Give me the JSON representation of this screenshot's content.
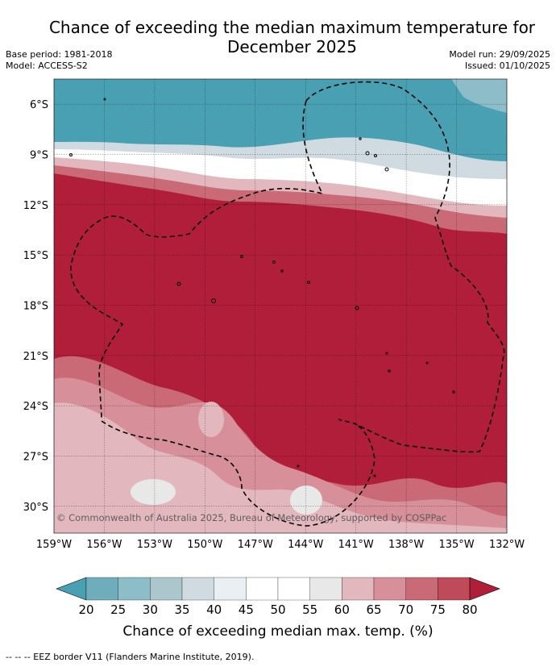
{
  "title": "Chance of exceeding the median maximum temperature for December 2025",
  "title_lines": [
    "Chance of exceeding the median maximum temperature for",
    "December 2025"
  ],
  "base_period": "Base period: 1981-2018",
  "model": "Model: ACCESS-S2",
  "model_run": "Model run: 29/09/2025",
  "issued": "Issued: 01/10/2025",
  "copyright": "© Commonwealth of Australia 2025, Bureau of Meteorology, supported by COSPPac",
  "footer": "--  --  -- EEZ border V11 (Flanders Marine Institute, 2019).",
  "map": {
    "lat_labels": [
      "6°S",
      "9°S",
      "12°S",
      "15°S",
      "18°S",
      "21°S",
      "24°S",
      "27°S",
      "30°S"
    ],
    "lon_labels": [
      "159°W",
      "156°W",
      "153°W",
      "150°W",
      "147°W",
      "144°W",
      "141°W",
      "138°W",
      "135°W",
      "132°W"
    ],
    "lon_range": [
      -159,
      -132
    ],
    "lat_range": [
      -4.5,
      -31.6
    ]
  },
  "colorbar": {
    "label": "Chance of exceeding median max. temp. (%)",
    "ticks": [
      "20",
      "25",
      "30",
      "35",
      "40",
      "45",
      "50",
      "55",
      "60",
      "65",
      "70",
      "75",
      "80"
    ],
    "colors": [
      "#4aa0b3",
      "#6fadbd",
      "#8dbdc8",
      "#abc7cd",
      "#cfdbe0",
      "#e9eff2",
      "#ffffff",
      "#ffffff",
      "#e8e8e8",
      "#e2b7be",
      "#d7909a",
      "#c96a76",
      "#bf4b5a",
      "#b01e3a"
    ],
    "under_color": "#4aa0b3",
    "over_color": "#b01e3a"
  }
}
